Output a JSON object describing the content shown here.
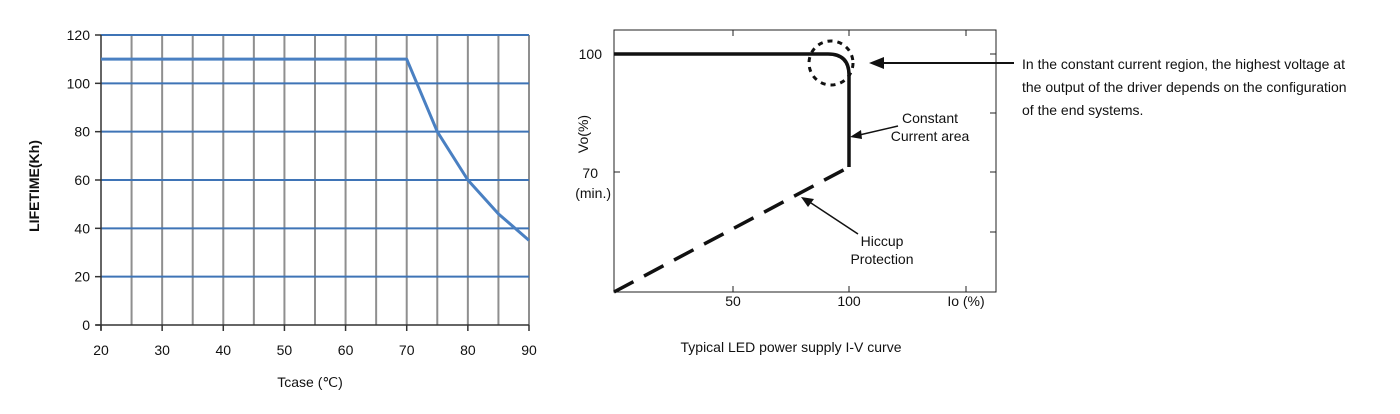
{
  "charts": {
    "lifetime": {
      "ylabel": "LIFETIME(Kh)",
      "xlabel": "Tcase (℃)"
    },
    "iv": {
      "caption": "Typical LED power supply I-V curve",
      "y_tick_100": "100",
      "y_tick_70": "70",
      "y_tick_min": "(min.)",
      "y_axis_label": "Vo(%)",
      "x_axis_unit_label": "Io (%)",
      "annotation_cc_line1": "Constant",
      "annotation_cc_line2": "Current area",
      "annotation_hiccup_line1": "Hiccup",
      "annotation_hiccup_line2": "Protection",
      "note_lines": [
        "In the constant current region, the highest voltage at",
        "the output of the driver depends on the configuration",
        "of the end systems."
      ]
    }
  },
  "chart_data": [
    {
      "type": "line",
      "xlabel": "Tcase (℃)",
      "ylabel": "LIFETIME(Kh)",
      "xlim": [
        20,
        90
      ],
      "ylim": [
        0,
        120
      ],
      "xticks": [
        20,
        30,
        40,
        50,
        60,
        70,
        80,
        90
      ],
      "yticks": [
        0,
        20,
        40,
        60,
        80,
        100,
        120
      ],
      "grid": true,
      "line_color": "#4a80c2",
      "grid_h_color": "#3f74b6",
      "grid_v_color": "#8f8f8f",
      "series": [
        {
          "x": [
            20,
            70,
            75,
            80,
            85,
            90
          ],
          "y": [
            110,
            110,
            80,
            60,
            46,
            35
          ]
        }
      ]
    },
    {
      "type": "line",
      "title": "Typical LED power supply I-V curve",
      "xlabel": "Io (%)",
      "ylabel": "Vo(%)",
      "xticks": [
        50,
        100
      ],
      "yticks": [
        70,
        100
      ],
      "xlim": [
        0,
        150
      ],
      "ylim": [
        45,
        105
      ],
      "series": [
        {
          "style": "solid",
          "x": [
            0,
            90,
            100,
            100
          ],
          "y": [
            100,
            100,
            97,
            70
          ]
        },
        {
          "style": "dashed",
          "x": [
            0,
            100
          ],
          "y": [
            45,
            70
          ]
        }
      ]
    }
  ]
}
